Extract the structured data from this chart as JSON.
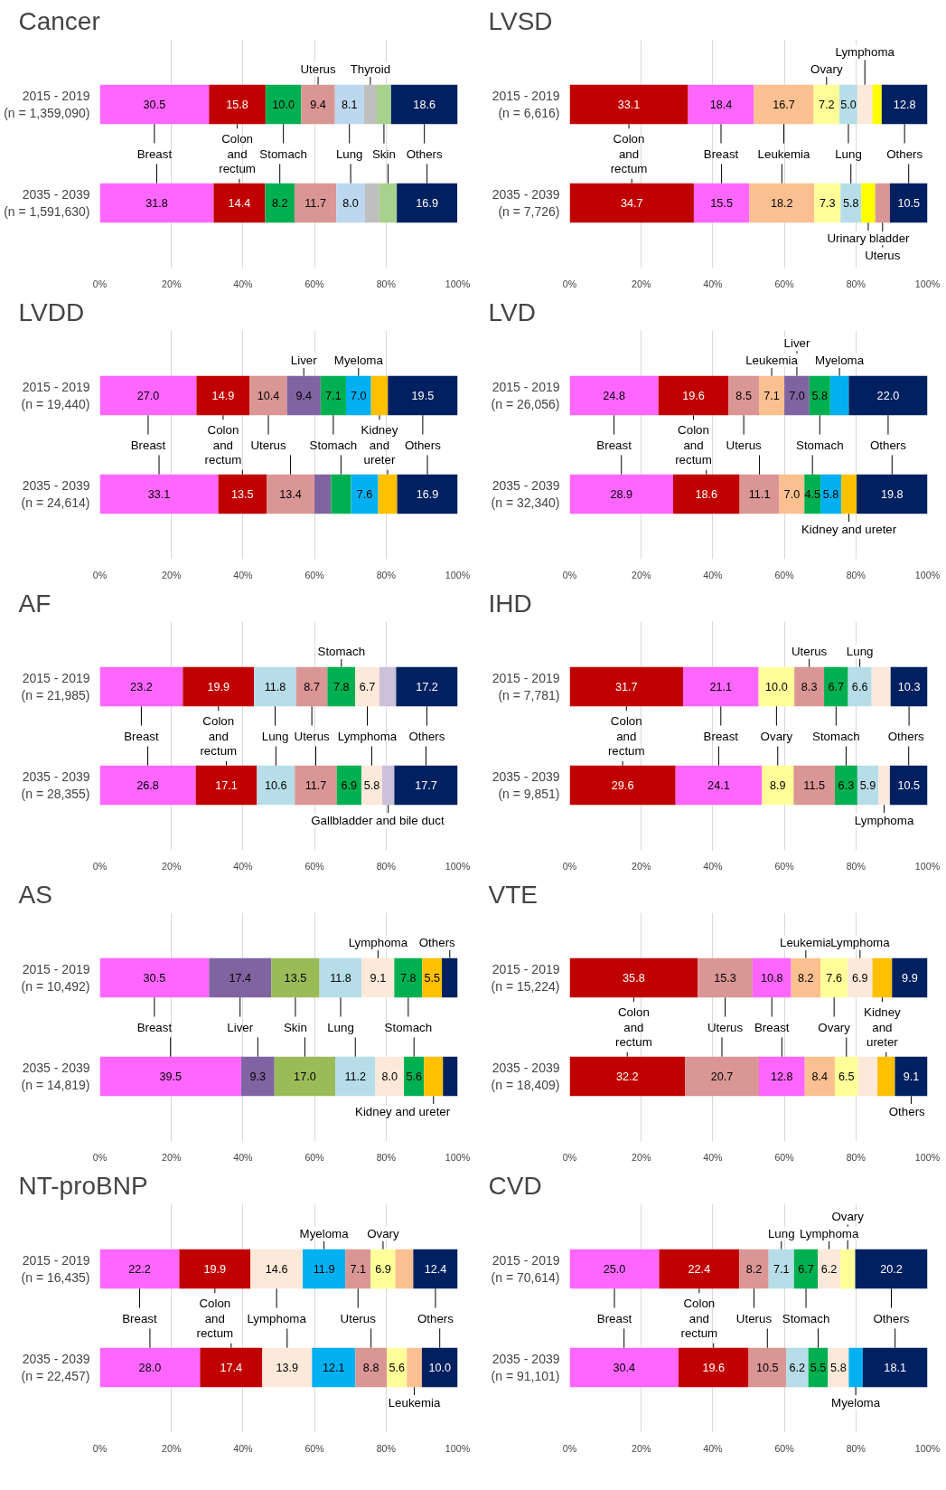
{
  "chart_data": [
    {
      "type": "bar",
      "orientation": "horizontal",
      "stacked": true,
      "title": "Cancer",
      "categories": [
        "2015 - 2019\n(n = 1,359,090)",
        "2035 - 2039\n(n = 1,591,630)"
      ],
      "xlim": [
        0,
        100
      ],
      "xticks": [
        {
          "value": 0,
          "label": "0%"
        },
        {
          "value": 20,
          "label": "20%"
        },
        {
          "value": 40,
          "label": "40%"
        },
        {
          "value": 60,
          "label": "60%"
        },
        {
          "value": 80,
          "label": "80%"
        },
        {
          "value": 100,
          "label": "100%"
        }
      ],
      "grid": "x",
      "series": [
        {
          "name": "Breast",
          "color": "#ff66ff",
          "values": [
            30.5,
            31.8
          ],
          "value_labels": [
            "30.5",
            "31.8"
          ]
        },
        {
          "name": "Colon and rectum",
          "color": "#c00000",
          "values": [
            15.8,
            14.4
          ],
          "value_labels": [
            "15.8",
            "14.4"
          ]
        },
        {
          "name": "Stomach",
          "color": "#00b050",
          "values": [
            10.0,
            8.2
          ],
          "value_labels": [
            "10.0",
            "8.2"
          ]
        },
        {
          "name": "Uterus",
          "color": "#da9694",
          "values": [
            9.4,
            11.7
          ],
          "value_labels": [
            "9.4",
            "11.7"
          ]
        },
        {
          "name": "Lung",
          "color": "#bdd7ee",
          "values": [
            8.1,
            8.0
          ],
          "value_labels": [
            "8.1",
            "8.0"
          ]
        },
        {
          "name": "Thyroid",
          "color": "#bfbfbf",
          "values": [
            3.6,
            4.0
          ],
          "value_labels": [
            null,
            null
          ]
        },
        {
          "name": "Skin",
          "color": "#a9d18e",
          "values": [
            4.0,
            4.9
          ],
          "value_labels": [
            null,
            null
          ]
        },
        {
          "name": "Others",
          "color": "#002060",
          "values": [
            18.6,
            16.9
          ],
          "value_labels": [
            "18.6",
            "16.9"
          ]
        }
      ]
    },
    {
      "type": "bar",
      "orientation": "horizontal",
      "stacked": true,
      "title": "LVSD",
      "categories": [
        "2015 - 2019\n(n = 6,616)",
        "2035 - 2039\n(n = 7,726)"
      ],
      "xlim": [
        0,
        100
      ],
      "xticks": [
        {
          "value": 0,
          "label": "0%"
        },
        {
          "value": 20,
          "label": "20%"
        },
        {
          "value": 40,
          "label": "40%"
        },
        {
          "value": 60,
          "label": "60%"
        },
        {
          "value": 80,
          "label": "80%"
        },
        {
          "value": 100,
          "label": "100%"
        }
      ],
      "grid": "x",
      "series": [
        {
          "name": "Colon and rectum",
          "color": "#c00000",
          "values": [
            33.1,
            34.7
          ],
          "value_labels": [
            "33.1",
            "34.7"
          ]
        },
        {
          "name": "Breast",
          "color": "#ff66ff",
          "values": [
            18.4,
            15.5
          ],
          "value_labels": [
            "18.4",
            "15.5"
          ]
        },
        {
          "name": "Leukemia",
          "color": "#fac090",
          "values": [
            16.7,
            18.2
          ],
          "value_labels": [
            "16.7",
            "18.2"
          ]
        },
        {
          "name": "Ovary",
          "color": "#ffff99",
          "values": [
            7.2,
            7.3
          ],
          "value_labels": [
            "7.2",
            "7.3"
          ]
        },
        {
          "name": "Lung",
          "color": "#b7dde8",
          "values": [
            5.0,
            5.8
          ],
          "value_labels": [
            "5.0",
            "5.8"
          ]
        },
        {
          "name": "Lymphoma",
          "color": "#fde9d9",
          "values": [
            4.2,
            null
          ],
          "value_labels": [
            null,
            null
          ]
        },
        {
          "name": "Urinary bladder",
          "color": "#ffff00",
          "values": [
            2.6,
            3.9
          ],
          "value_labels": [
            null,
            null
          ]
        },
        {
          "name": "Uterus",
          "color": "#da9694",
          "values": [
            null,
            4.1
          ],
          "value_labels": [
            null,
            null
          ]
        },
        {
          "name": "Others",
          "color": "#002060",
          "values": [
            12.8,
            10.5
          ],
          "value_labels": [
            "12.8",
            "10.5"
          ]
        }
      ]
    },
    {
      "type": "bar",
      "orientation": "horizontal",
      "stacked": true,
      "title": "LVDD",
      "categories": [
        "2015 - 2019\n(n = 19,440)",
        "2035 - 2039\n(n = 24,614)"
      ],
      "xlim": [
        0,
        100
      ],
      "xticks": [
        {
          "value": 0,
          "label": "0%"
        },
        {
          "value": 20,
          "label": "20%"
        },
        {
          "value": 40,
          "label": "40%"
        },
        {
          "value": 60,
          "label": "60%"
        },
        {
          "value": 80,
          "label": "80%"
        },
        {
          "value": 100,
          "label": "100%"
        }
      ],
      "grid": "x",
      "series": [
        {
          "name": "Breast",
          "color": "#ff66ff",
          "values": [
            27.0,
            33.1
          ],
          "value_labels": [
            "27.0",
            "33.1"
          ]
        },
        {
          "name": "Colon and rectum",
          "color": "#c00000",
          "values": [
            14.9,
            13.5
          ],
          "value_labels": [
            "14.9",
            "13.5"
          ]
        },
        {
          "name": "Uterus",
          "color": "#da9694",
          "values": [
            10.4,
            13.4
          ],
          "value_labels": [
            "10.4",
            "13.4"
          ]
        },
        {
          "name": "Liver",
          "color": "#8064a2",
          "values": [
            9.4,
            4.6
          ],
          "value_labels": [
            "9.4",
            null
          ]
        },
        {
          "name": "Stomach",
          "color": "#00b050",
          "values": [
            7.1,
            5.6
          ],
          "value_labels": [
            "7.1",
            null
          ]
        },
        {
          "name": "Myeloma",
          "color": "#00b0f0",
          "values": [
            7.0,
            7.6
          ],
          "value_labels": [
            "7.0",
            "7.6"
          ]
        },
        {
          "name": "Kidney and ureter",
          "color": "#ffc000",
          "values": [
            4.7,
            5.3
          ],
          "value_labels": [
            null,
            null
          ]
        },
        {
          "name": "Others",
          "color": "#002060",
          "values": [
            19.5,
            16.9
          ],
          "value_labels": [
            "19.5",
            "16.9"
          ]
        }
      ]
    },
    {
      "type": "bar",
      "orientation": "horizontal",
      "stacked": true,
      "title": "LVD",
      "categories": [
        "2015 - 2019\n(n = 26,056)",
        "2035 - 2039\n(n = 32,340)"
      ],
      "xlim": [
        0,
        100
      ],
      "xticks": [
        {
          "value": 0,
          "label": "0%"
        },
        {
          "value": 20,
          "label": "20%"
        },
        {
          "value": 40,
          "label": "40%"
        },
        {
          "value": 60,
          "label": "60%"
        },
        {
          "value": 80,
          "label": "80%"
        },
        {
          "value": 100,
          "label": "100%"
        }
      ],
      "grid": "x",
      "series": [
        {
          "name": "Breast",
          "color": "#ff66ff",
          "values": [
            24.8,
            28.9
          ],
          "value_labels": [
            "24.8",
            "28.9"
          ]
        },
        {
          "name": "Colon and rectum",
          "color": "#c00000",
          "values": [
            19.6,
            18.6
          ],
          "value_labels": [
            "19.6",
            "18.6"
          ]
        },
        {
          "name": "Uterus",
          "color": "#da9694",
          "values": [
            8.5,
            11.1
          ],
          "value_labels": [
            "8.5",
            "11.1"
          ]
        },
        {
          "name": "Leukemia",
          "color": "#fac090",
          "values": [
            7.1,
            7.0
          ],
          "value_labels": [
            "7.1",
            "7.0"
          ]
        },
        {
          "name": "Liver",
          "color": "#8064a2",
          "values": [
            7.0,
            null
          ],
          "value_labels": [
            "7.0",
            null
          ]
        },
        {
          "name": "Stomach",
          "color": "#00b050",
          "values": [
            5.8,
            4.5
          ],
          "value_labels": [
            "5.8",
            "4.5"
          ]
        },
        {
          "name": "Myeloma",
          "color": "#00b0f0",
          "values": [
            5.2,
            5.8
          ],
          "value_labels": [
            null,
            "5.8"
          ]
        },
        {
          "name": "Kidney and ureter",
          "color": "#ffc000",
          "values": [
            null,
            4.3
          ],
          "value_labels": [
            null,
            null
          ]
        },
        {
          "name": "Others",
          "color": "#002060",
          "values": [
            22.0,
            19.8
          ],
          "value_labels": [
            "22.0",
            "19.8"
          ]
        }
      ]
    },
    {
      "type": "bar",
      "orientation": "horizontal",
      "stacked": true,
      "title": "AF",
      "categories": [
        "2015 - 2019\n(n = 21,985)",
        "2035 - 2039\n(n = 28,355)"
      ],
      "xlim": [
        0,
        100
      ],
      "xticks": [
        {
          "value": 0,
          "label": "0%"
        },
        {
          "value": 20,
          "label": "20%"
        },
        {
          "value": 40,
          "label": "40%"
        },
        {
          "value": 60,
          "label": "60%"
        },
        {
          "value": 80,
          "label": "80%"
        },
        {
          "value": 100,
          "label": "100%"
        }
      ],
      "grid": "x",
      "series": [
        {
          "name": "Breast",
          "color": "#ff66ff",
          "values": [
            23.2,
            26.8
          ],
          "value_labels": [
            "23.2",
            "26.8"
          ]
        },
        {
          "name": "Colon and rectum",
          "color": "#c00000",
          "values": [
            19.9,
            17.1
          ],
          "value_labels": [
            "19.9",
            "17.1"
          ]
        },
        {
          "name": "Lung",
          "color": "#b7dde8",
          "values": [
            11.8,
            10.6
          ],
          "value_labels": [
            "11.8",
            "10.6"
          ]
        },
        {
          "name": "Uterus",
          "color": "#da9694",
          "values": [
            8.7,
            11.7
          ],
          "value_labels": [
            "8.7",
            "11.7"
          ]
        },
        {
          "name": "Stomach",
          "color": "#00b050",
          "values": [
            7.8,
            6.9
          ],
          "value_labels": [
            "7.8",
            "6.9"
          ]
        },
        {
          "name": "Lymphoma",
          "color": "#fde9d9",
          "values": [
            6.7,
            5.8
          ],
          "value_labels": [
            "6.7",
            "5.8"
          ]
        },
        {
          "name": "Gallbladder and bile duct",
          "color": "#ccc0da",
          "values": [
            4.7,
            3.4
          ],
          "value_labels": [
            null,
            null
          ]
        },
        {
          "name": "Others",
          "color": "#002060",
          "values": [
            17.2,
            17.7
          ],
          "value_labels": [
            "17.2",
            "17.7"
          ]
        }
      ]
    },
    {
      "type": "bar",
      "orientation": "horizontal",
      "stacked": true,
      "title": "IHD",
      "categories": [
        "2015 - 2019\n(n = 7,781)",
        "2035 - 2039\n(n = 9,851)"
      ],
      "xlim": [
        0,
        100
      ],
      "xticks": [
        {
          "value": 0,
          "label": "0%"
        },
        {
          "value": 20,
          "label": "20%"
        },
        {
          "value": 40,
          "label": "40%"
        },
        {
          "value": 60,
          "label": "60%"
        },
        {
          "value": 80,
          "label": "80%"
        },
        {
          "value": 100,
          "label": "100%"
        }
      ],
      "grid": "x",
      "series": [
        {
          "name": "Colon and rectum",
          "color": "#c00000",
          "values": [
            31.7,
            29.6
          ],
          "value_labels": [
            "31.7",
            "29.6"
          ]
        },
        {
          "name": "Breast",
          "color": "#ff66ff",
          "values": [
            21.1,
            24.1
          ],
          "value_labels": [
            "21.1",
            "24.1"
          ]
        },
        {
          "name": "Ovary",
          "color": "#ffff99",
          "values": [
            10.0,
            8.9
          ],
          "value_labels": [
            "10.0",
            "8.9"
          ]
        },
        {
          "name": "Uterus",
          "color": "#da9694",
          "values": [
            8.3,
            11.5
          ],
          "value_labels": [
            "8.3",
            "11.5"
          ]
        },
        {
          "name": "Stomach",
          "color": "#00b050",
          "values": [
            6.7,
            6.3
          ],
          "value_labels": [
            "6.7",
            "6.3"
          ]
        },
        {
          "name": "Lung",
          "color": "#b7dde8",
          "values": [
            6.6,
            5.9
          ],
          "value_labels": [
            "6.6",
            "5.9"
          ]
        },
        {
          "name": "Lymphoma",
          "color": "#fde9d9",
          "values": [
            5.3,
            3.2
          ],
          "value_labels": [
            null,
            null
          ]
        },
        {
          "name": "Others",
          "color": "#002060",
          "values": [
            10.3,
            10.5
          ],
          "value_labels": [
            "10.3",
            "10.5"
          ]
        }
      ]
    },
    {
      "type": "bar",
      "orientation": "horizontal",
      "stacked": true,
      "title": "AS",
      "categories": [
        "2015 - 2019\n(n = 10,492)",
        "2035 - 2039\n(n = 14,819)"
      ],
      "xlim": [
        0,
        100
      ],
      "xticks": [
        {
          "value": 0,
          "label": "0%"
        },
        {
          "value": 20,
          "label": "20%"
        },
        {
          "value": 40,
          "label": "40%"
        },
        {
          "value": 60,
          "label": "60%"
        },
        {
          "value": 80,
          "label": "80%"
        },
        {
          "value": 100,
          "label": "100%"
        }
      ],
      "grid": "x",
      "series": [
        {
          "name": "Breast",
          "color": "#ff66ff",
          "values": [
            30.5,
            39.5
          ],
          "value_labels": [
            "30.5",
            "39.5"
          ]
        },
        {
          "name": "Liver",
          "color": "#8064a2",
          "values": [
            17.4,
            9.3
          ],
          "value_labels": [
            "17.4",
            "9.3"
          ]
        },
        {
          "name": "Skin",
          "color": "#9bbb59",
          "values": [
            13.5,
            17.0
          ],
          "value_labels": [
            "13.5",
            "17.0"
          ]
        },
        {
          "name": "Lung",
          "color": "#b7dde8",
          "values": [
            11.8,
            11.2
          ],
          "value_labels": [
            "11.8",
            "11.2"
          ]
        },
        {
          "name": "Lymphoma",
          "color": "#fde9d9",
          "values": [
            9.1,
            8.0
          ],
          "value_labels": [
            "9.1",
            "8.0"
          ]
        },
        {
          "name": "Stomach",
          "color": "#00b050",
          "values": [
            7.8,
            5.6
          ],
          "value_labels": [
            "7.8",
            "5.6"
          ]
        },
        {
          "name": "Kidney and ureter",
          "color": "#ffc000",
          "values": [
            5.5,
            5.3
          ],
          "value_labels": [
            "5.5",
            null
          ]
        },
        {
          "name": "Others",
          "color": "#002060",
          "values": [
            4.4,
            4.1
          ],
          "value_labels": [
            null,
            null
          ]
        }
      ]
    },
    {
      "type": "bar",
      "orientation": "horizontal",
      "stacked": true,
      "title": "VTE",
      "categories": [
        "2015 - 2019\n(n = 15,224)",
        "2035 - 2039\n(n = 18,409)"
      ],
      "xlim": [
        0,
        100
      ],
      "xticks": [
        {
          "value": 0,
          "label": "0%"
        },
        {
          "value": 20,
          "label": "20%"
        },
        {
          "value": 40,
          "label": "40%"
        },
        {
          "value": 60,
          "label": "60%"
        },
        {
          "value": 80,
          "label": "80%"
        },
        {
          "value": 100,
          "label": "100%"
        }
      ],
      "grid": "x",
      "series": [
        {
          "name": "Colon and rectum",
          "color": "#c00000",
          "values": [
            35.8,
            32.2
          ],
          "value_labels": [
            "35.8",
            "32.2"
          ]
        },
        {
          "name": "Uterus",
          "color": "#da9694",
          "values": [
            15.3,
            20.7
          ],
          "value_labels": [
            "15.3",
            "20.7"
          ]
        },
        {
          "name": "Breast",
          "color": "#ff66ff",
          "values": [
            10.8,
            12.8
          ],
          "value_labels": [
            "10.8",
            "12.8"
          ]
        },
        {
          "name": "Leukemia",
          "color": "#fac090",
          "values": [
            8.2,
            8.4
          ],
          "value_labels": [
            "8.2",
            "8.4"
          ]
        },
        {
          "name": "Ovary",
          "color": "#ffff99",
          "values": [
            7.6,
            6.5
          ],
          "value_labels": [
            "7.6",
            "6.5"
          ]
        },
        {
          "name": "Lymphoma",
          "color": "#fde9d9",
          "values": [
            6.9,
            5.4
          ],
          "value_labels": [
            "6.9",
            null
          ]
        },
        {
          "name": "Kidney and ureter",
          "color": "#ffc000",
          "values": [
            5.5,
            4.9
          ],
          "value_labels": [
            null,
            null
          ]
        },
        {
          "name": "Others",
          "color": "#002060",
          "values": [
            9.9,
            9.1
          ],
          "value_labels": [
            "9.9",
            "9.1"
          ]
        }
      ]
    },
    {
      "type": "bar",
      "orientation": "horizontal",
      "stacked": true,
      "title": "NT-proBNP",
      "categories": [
        "2015 - 2019\n(n = 16,435)",
        "2035 - 2039\n(n = 22,457)"
      ],
      "xlim": [
        0,
        100
      ],
      "xticks": [
        {
          "value": 0,
          "label": "0%"
        },
        {
          "value": 20,
          "label": "20%"
        },
        {
          "value": 40,
          "label": "40%"
        },
        {
          "value": 60,
          "label": "60%"
        },
        {
          "value": 80,
          "label": "80%"
        },
        {
          "value": 100,
          "label": "100%"
        }
      ],
      "grid": "x",
      "series": [
        {
          "name": "Breast",
          "color": "#ff66ff",
          "values": [
            22.2,
            28.0
          ],
          "value_labels": [
            "22.2",
            "28.0"
          ]
        },
        {
          "name": "Colon and rectum",
          "color": "#c00000",
          "values": [
            19.9,
            17.4
          ],
          "value_labels": [
            "19.9",
            "17.4"
          ]
        },
        {
          "name": "Lymphoma",
          "color": "#fde9d9",
          "values": [
            14.6,
            13.9
          ],
          "value_labels": [
            "14.6",
            "13.9"
          ]
        },
        {
          "name": "Myeloma",
          "color": "#00b0f0",
          "values": [
            11.9,
            12.1
          ],
          "value_labels": [
            "11.9",
            "12.1"
          ]
        },
        {
          "name": "Uterus",
          "color": "#da9694",
          "values": [
            7.1,
            8.8
          ],
          "value_labels": [
            "7.1",
            "8.8"
          ]
        },
        {
          "name": "Ovary",
          "color": "#ffff99",
          "values": [
            6.9,
            5.6
          ],
          "value_labels": [
            "6.9",
            "5.6"
          ]
        },
        {
          "name": "Leukemia",
          "color": "#fac090",
          "values": [
            5.0,
            4.2
          ],
          "value_labels": [
            null,
            null
          ]
        },
        {
          "name": "Others",
          "color": "#002060",
          "values": [
            12.4,
            10.0
          ],
          "value_labels": [
            "12.4",
            "10.0"
          ]
        }
      ]
    },
    {
      "type": "bar",
      "orientation": "horizontal",
      "stacked": true,
      "title": "CVD",
      "categories": [
        "2015 - 2019\n(n = 70,614)",
        "2035 - 2039\n(n = 91,101)"
      ],
      "xlim": [
        0,
        100
      ],
      "xticks": [
        {
          "value": 0,
          "label": "0%"
        },
        {
          "value": 20,
          "label": "20%"
        },
        {
          "value": 40,
          "label": "40%"
        },
        {
          "value": 60,
          "label": "60%"
        },
        {
          "value": 80,
          "label": "80%"
        },
        {
          "value": 100,
          "label": "100%"
        }
      ],
      "grid": "x",
      "series": [
        {
          "name": "Breast",
          "color": "#ff66ff",
          "values": [
            25.0,
            30.4
          ],
          "value_labels": [
            "25.0",
            "30.4"
          ]
        },
        {
          "name": "Colon and rectum",
          "color": "#c00000",
          "values": [
            22.4,
            19.6
          ],
          "value_labels": [
            "22.4",
            "19.6"
          ]
        },
        {
          "name": "Uterus",
          "color": "#da9694",
          "values": [
            8.2,
            10.5
          ],
          "value_labels": [
            "8.2",
            "10.5"
          ]
        },
        {
          "name": "Lung",
          "color": "#b7dde8",
          "values": [
            7.1,
            6.2
          ],
          "value_labels": [
            "7.1",
            "6.2"
          ]
        },
        {
          "name": "Stomach",
          "color": "#00b050",
          "values": [
            6.7,
            5.5
          ],
          "value_labels": [
            "6.7",
            "5.5"
          ]
        },
        {
          "name": "Lymphoma",
          "color": "#fde9d9",
          "values": [
            6.2,
            5.8
          ],
          "value_labels": [
            "6.2",
            "5.8"
          ]
        },
        {
          "name": "Ovary",
          "color": "#ffff99",
          "values": [
            4.2,
            null
          ],
          "value_labels": [
            null,
            null
          ]
        },
        {
          "name": "Myeloma",
          "color": "#00b0f0",
          "values": [
            null,
            3.9
          ],
          "value_labels": [
            null,
            null
          ]
        },
        {
          "name": "Others",
          "color": "#002060",
          "values": [
            20.2,
            18.1
          ],
          "value_labels": [
            "20.2",
            "18.1"
          ]
        }
      ]
    }
  ]
}
